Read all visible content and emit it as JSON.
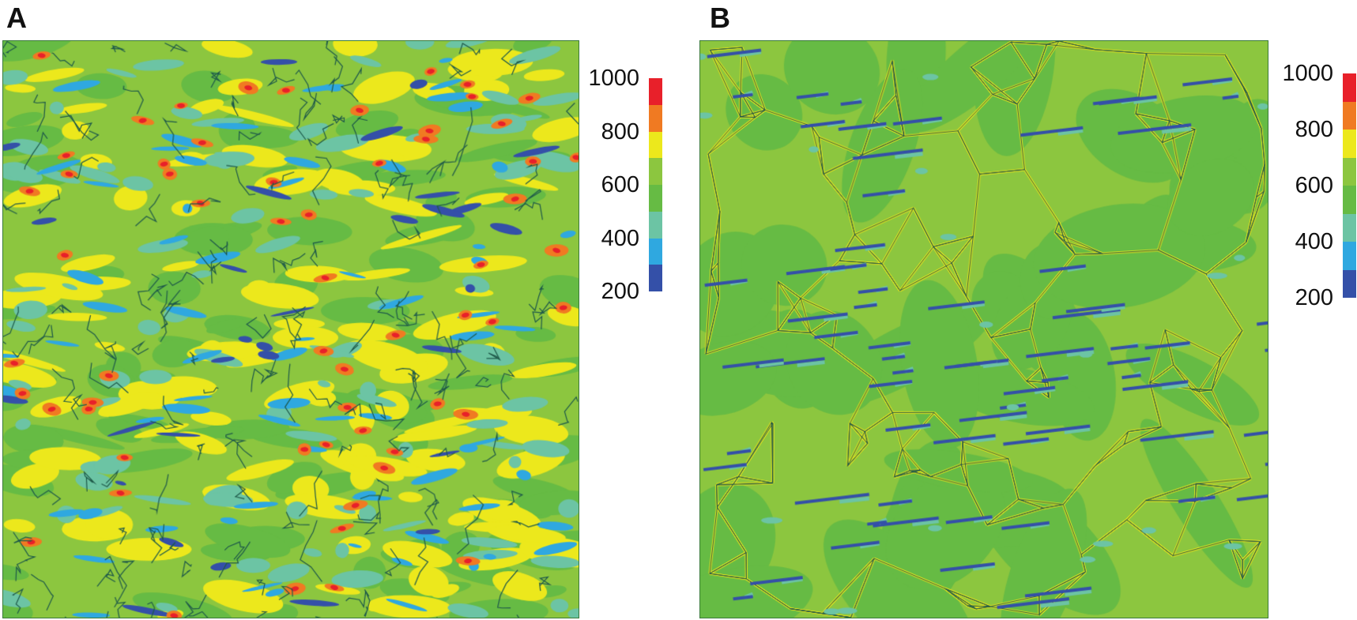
{
  "panels": [
    {
      "label": "A",
      "type": "contour-map"
    },
    {
      "label": "B",
      "type": "contour-map"
    }
  ],
  "colorbar": {
    "ticks": [
      "1000",
      "800",
      "600",
      "400",
      "200"
    ],
    "range": [
      200,
      1000
    ],
    "bands_top_to_bottom": [
      "#e8202a",
      "#f07a22",
      "#ece81c",
      "#8cc63f",
      "#66bb44",
      "#6cc4a4",
      "#2fa8e0",
      "#3450a8"
    ]
  }
}
